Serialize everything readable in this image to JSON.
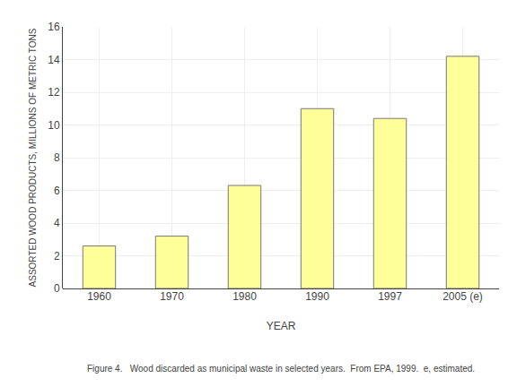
{
  "chart_data": {
    "type": "bar",
    "categories": [
      "1960",
      "1970",
      "1980",
      "1990",
      "1997",
      "2005 (e)"
    ],
    "values": [
      2.6,
      3.2,
      6.3,
      11.0,
      10.4,
      14.2
    ],
    "color": "#FFFF99",
    "xlabel": "YEAR",
    "ylabel": "ASSORTED WOOD PRODUCTS, MILLIONS OF METRIC TONS",
    "ylim": [
      0,
      16
    ],
    "yticks": [
      0,
      2,
      4,
      6,
      8,
      10,
      12,
      14,
      16
    ],
    "grid": true,
    "annotations": [
      "Figure 4.   Wood discarded as municipal waste in selected years.  From EPA, 1999.  e, estimated."
    ]
  }
}
